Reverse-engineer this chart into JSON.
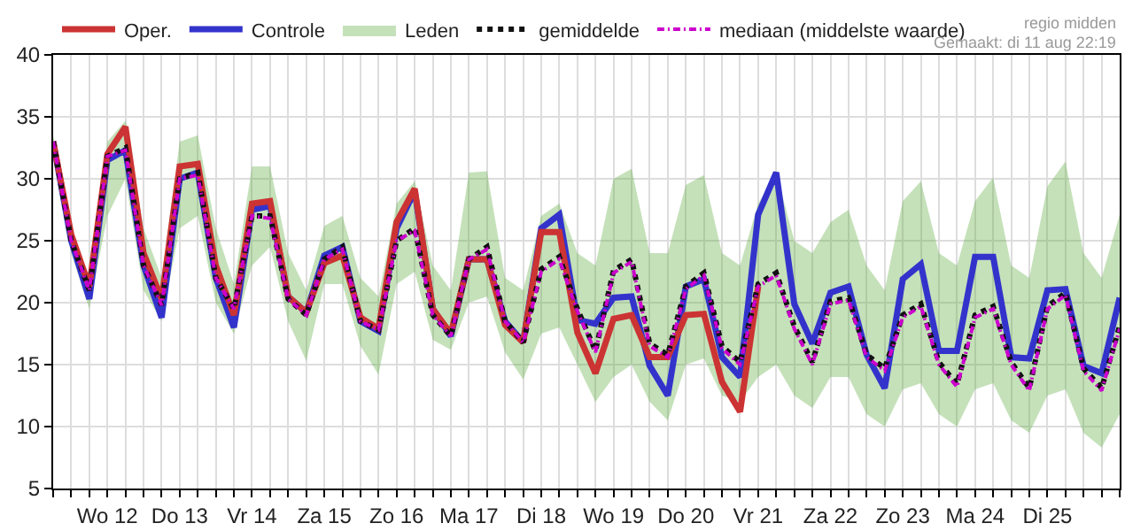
{
  "chart_data": {
    "type": "line",
    "categories": [
      null,
      null,
      null,
      "Wo 12",
      null,
      null,
      null,
      "Do 13",
      null,
      null,
      null,
      "Vr 14",
      null,
      null,
      null,
      "Za 15",
      null,
      null,
      null,
      "Zo 16",
      null,
      null,
      null,
      "Ma 17",
      null,
      null,
      null,
      "Di 18",
      null,
      null,
      null,
      "Wo 19",
      null,
      null,
      null,
      "Do 20",
      null,
      null,
      null,
      "Vr 21",
      null,
      null,
      null,
      "Za 22",
      null,
      null,
      null,
      "Zo 23",
      null,
      null,
      null,
      "Ma 24",
      null,
      null,
      null,
      "Di 25",
      null,
      null,
      null,
      null
    ],
    "ylim": [
      5,
      40
    ],
    "yticks": [
      5,
      10,
      15,
      20,
      25,
      30,
      35,
      40
    ],
    "grid": true,
    "legend": "top",
    "marker": "none",
    "annotations": [
      "regio midden",
      "Gemaakt: di 11 aug 22:19"
    ],
    "series": [
      {
        "name": "Oper.",
        "color": "#cc3333",
        "line_style": "solid",
        "values": [
          33,
          25.5,
          21.3,
          32,
          34.2,
          24,
          20.3,
          31,
          31.2,
          23,
          19,
          28,
          28.2,
          20.5,
          19.2,
          23.2,
          23.8,
          18.8,
          17.9,
          26.5,
          29.2,
          19.5,
          17.5,
          23.5,
          23.5,
          18.2,
          16.8,
          25.7,
          25.7,
          17.6,
          14.3,
          18.7,
          19,
          15.6,
          15.6,
          19,
          19.1,
          13.6,
          11.2,
          21.3,
          null,
          null,
          null,
          null,
          null,
          null,
          null,
          null,
          null,
          null,
          null,
          null,
          null,
          null,
          null,
          null,
          null,
          null,
          null,
          null
        ]
      },
      {
        "name": "Controle",
        "color": "#3333cc",
        "line_style": "solid",
        "values": [
          33,
          25,
          20.3,
          31.5,
          32.3,
          23,
          18.8,
          30,
          30.5,
          22,
          18,
          27.5,
          27.8,
          20.5,
          19.2,
          23.8,
          24.5,
          18.5,
          17.7,
          26,
          29,
          19.5,
          17.3,
          23.5,
          23.5,
          18.5,
          16.8,
          26,
          27.1,
          18.6,
          18.3,
          20.4,
          20.5,
          14.9,
          12.5,
          21.3,
          21.9,
          15.6,
          14,
          27.1,
          30.5,
          19.9,
          16.7,
          20.8,
          21.3,
          15.8,
          13.1,
          21.9,
          23.1,
          16.1,
          16.1,
          23.7,
          23.7,
          15.6,
          15.5,
          21,
          21.1,
          14.9,
          14.3,
          20.4
        ]
      },
      {
        "name": "Leden",
        "color": "#5aaa3a",
        "values": [
          null,
          null,
          null,
          null,
          null,
          null,
          null,
          null,
          null,
          null,
          null,
          null,
          null,
          null,
          null,
          null,
          null,
          null,
          null,
          null,
          null,
          null,
          null,
          null,
          null,
          null,
          null,
          null,
          null,
          null,
          null,
          null,
          null,
          null,
          null,
          null,
          null,
          null,
          null,
          null,
          null,
          null,
          null,
          null,
          null,
          null,
          null,
          null,
          null,
          null,
          null,
          null,
          null,
          null,
          null,
          null,
          null,
          null,
          null,
          null
        ],
        "lower": [
          32.5,
          24,
          19.5,
          27,
          30,
          21,
          18.5,
          26,
          27,
          20,
          17.5,
          23,
          24.5,
          18.5,
          15.3,
          21.5,
          21.5,
          16.5,
          14.2,
          21.5,
          22.5,
          17,
          16.2,
          20,
          20.5,
          16,
          13.8,
          17.5,
          18,
          15,
          12,
          14,
          15,
          12,
          10.5,
          15,
          15.5,
          12.5,
          12,
          14,
          15,
          12.5,
          11.5,
          14,
          14,
          11,
          10,
          13,
          13.5,
          11,
          10,
          13,
          13.5,
          10.5,
          9.5,
          12.5,
          13,
          9.5,
          8.3,
          11
        ],
        "upper": [
          33.5,
          26,
          22,
          33,
          34.7,
          26,
          22,
          33,
          33.5,
          26,
          21.5,
          31,
          31,
          24,
          21,
          26.2,
          27,
          22,
          20.5,
          28,
          29.8,
          23,
          21,
          30.5,
          30.6,
          22,
          21,
          27,
          28,
          24,
          23,
          30,
          30.8,
          24,
          24,
          29.5,
          30.3,
          24,
          23,
          28,
          30.5,
          25,
          24,
          26.5,
          27.5,
          23,
          21,
          28.2,
          29.8,
          24,
          23,
          28.2,
          30.1,
          23,
          22,
          29.4,
          31.4,
          24,
          22,
          27.1
        ]
      },
      {
        "name": "gemiddelde",
        "color": "#111111",
        "line_style": "dotted",
        "values": [
          33,
          25,
          21,
          31.8,
          32.5,
          23,
          19.8,
          30,
          30.5,
          22,
          19.5,
          27,
          27,
          20.3,
          19,
          23.5,
          24.5,
          18.5,
          17.8,
          25,
          26,
          19,
          17.3,
          23.5,
          24.5,
          18.5,
          16.8,
          22.7,
          23.7,
          19.5,
          16.1,
          22.6,
          23.5,
          16.7,
          15.8,
          21.3,
          22.4,
          16.5,
          15.2,
          21.5,
          22.4,
          18.1,
          15.2,
          20.1,
          20.4,
          15.8,
          14.7,
          19,
          19.9,
          15.2,
          13.4,
          19,
          19.7,
          15.2,
          13.1,
          19.7,
          20.8,
          14.7,
          13.1,
          18.1
        ]
      },
      {
        "name": "mediaan (middelste waarde)",
        "color": "#cc00cc",
        "line_style": "dashed",
        "values": [
          33,
          25,
          21,
          31.8,
          32.3,
          23,
          19.8,
          30,
          30.3,
          22,
          19.5,
          27,
          26.8,
          20.3,
          19,
          23.5,
          24.3,
          18.5,
          17.8,
          25,
          25.8,
          19,
          17.3,
          23.5,
          24.3,
          18.5,
          16.8,
          22.5,
          23.5,
          19.3,
          16,
          22.4,
          23.3,
          16.5,
          15.6,
          21.1,
          22.2,
          16.3,
          15,
          21.3,
          22.2,
          17.9,
          15,
          19.9,
          20.2,
          15.6,
          14.5,
          18.8,
          19.7,
          15,
          13.2,
          18.8,
          19.5,
          15,
          12.9,
          19.5,
          20.6,
          14.5,
          12.9,
          17.9
        ]
      }
    ]
  }
}
